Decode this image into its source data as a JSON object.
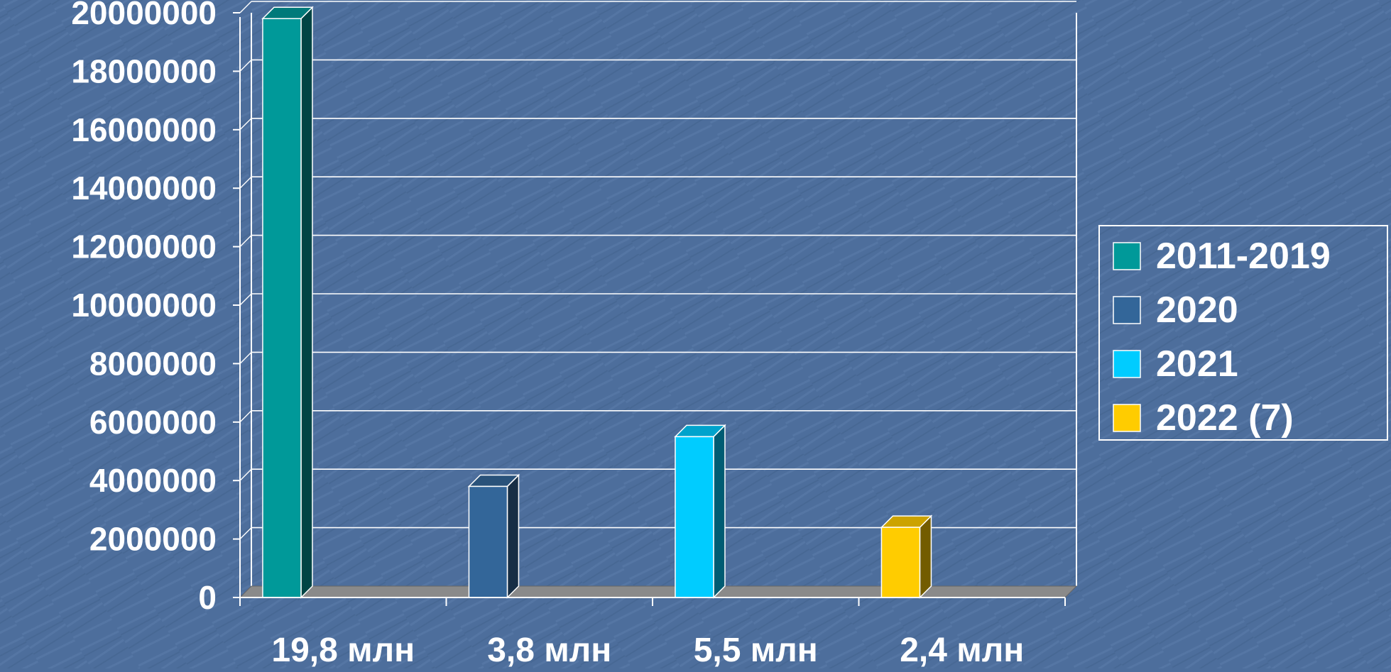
{
  "chart_data": {
    "type": "bar",
    "categories": [
      "19,8 млн",
      "3,8 млн",
      "5,5 млн",
      "2,4 млн"
    ],
    "series": [
      {
        "name": "2011-2019",
        "values": [
          19800000,
          null,
          null,
          null
        ],
        "color": "#009999"
      },
      {
        "name": "2020",
        "values": [
          null,
          3800000,
          null,
          null
        ],
        "color": "#336699"
      },
      {
        "name": "2021",
        "values": [
          null,
          null,
          5500000,
          null
        ],
        "color": "#00ccff"
      },
      {
        "name": "2022 (7)",
        "values": [
          null,
          null,
          null,
          2400000
        ],
        "color": "#ffcc00"
      }
    ],
    "yticks": [
      "0",
      "2000000",
      "4000000",
      "6000000",
      "8000000",
      "10000000",
      "12000000",
      "14000000",
      "16000000",
      "18000000",
      "20000000"
    ],
    "ylim": [
      0,
      20000000
    ],
    "grid": true,
    "legend_position": "right",
    "style": "3d-column"
  }
}
